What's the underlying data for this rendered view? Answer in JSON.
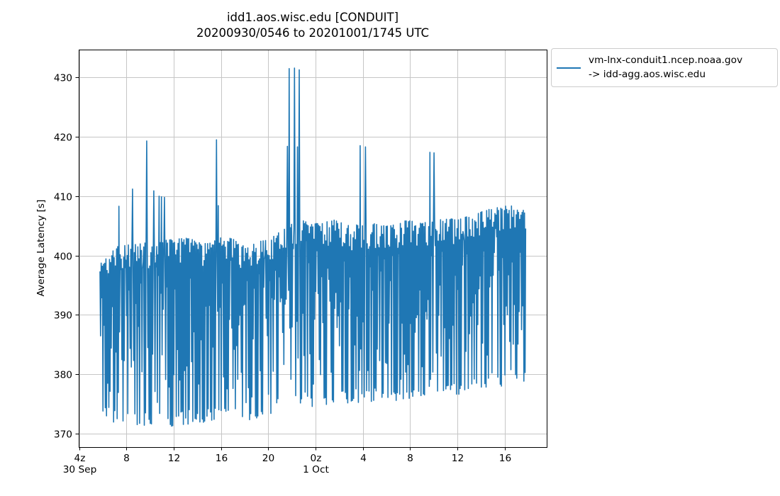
{
  "chart_data": {
    "type": "line",
    "title_lines": [
      "idd1.aos.wisc.edu [CONDUIT]",
      "20200930/0546 to 20201001/1745 UTC"
    ],
    "ylabel": "Average Latency [s]",
    "grid": {
      "show": true,
      "color": "#c6c6c6"
    },
    "axes_color": "#000000",
    "x_axis": {
      "unit": "hours since 2020-09-30 00:00 UTC",
      "range": [
        3.97,
        43.55
      ],
      "ticks": [
        {
          "t": 4,
          "label": "4z",
          "sub": "30 Sep"
        },
        {
          "t": 8,
          "label": "8"
        },
        {
          "t": 12,
          "label": "12"
        },
        {
          "t": 16,
          "label": "16"
        },
        {
          "t": 20,
          "label": "20"
        },
        {
          "t": 24,
          "label": "0z",
          "sub": "1 Oct"
        },
        {
          "t": 28,
          "label": "4"
        },
        {
          "t": 32,
          "label": "8"
        },
        {
          "t": 36,
          "label": "12"
        },
        {
          "t": 40,
          "label": "16"
        }
      ]
    },
    "y_axis": {
      "range": [
        367.7,
        434.7
      ],
      "ticks": [
        370,
        380,
        390,
        400,
        410,
        420,
        430
      ]
    },
    "series": [
      {
        "name": "vm-lnx-conduit1.ncep.noaa.gov -> idd-agg.aos.wisc.edu",
        "label_lines": [
          "vm-lnx-conduit1.ncep.noaa.gov",
          "-> idd-agg.aos.wisc.edu"
        ],
        "color": "#1f77b4",
        "time_start": "2020-09-30 05:46 UTC",
        "time_end": "2020-10-01 17:45 UTC",
        "synthesis": {
          "t_start": 5.77,
          "t_end": 41.75,
          "step_minutes": 3,
          "seed": 11,
          "envelope_keyframes": [
            [
              5.77,
              373.5,
              398.5
            ],
            [
              7.0,
              371.5,
              401.5
            ],
            [
              9.0,
              371.2,
              402.0
            ],
            [
              11.0,
              371.0,
              402.5
            ],
            [
              13.0,
              371.5,
              403.0
            ],
            [
              15.0,
              372.0,
              402.0
            ],
            [
              16.5,
              372.3,
              403.5
            ],
            [
              18.0,
              372.0,
              401.5
            ],
            [
              19.5,
              372.5,
              402.5
            ],
            [
              21.0,
              373.5,
              404.0
            ],
            [
              22.5,
              374.5,
              406.0
            ],
            [
              24.0,
              374.5,
              405.5
            ],
            [
              25.5,
              374.8,
              406.0
            ],
            [
              27.0,
              375.0,
              405.0
            ],
            [
              28.5,
              375.2,
              405.5
            ],
            [
              30.0,
              375.5,
              405.0
            ],
            [
              31.5,
              375.5,
              406.0
            ],
            [
              33.0,
              375.8,
              405.5
            ],
            [
              34.5,
              376.0,
              406.5
            ],
            [
              36.0,
              376.5,
              406.0
            ],
            [
              37.5,
              377.0,
              407.0
            ],
            [
              39.0,
              377.2,
              408.0
            ],
            [
              40.5,
              377.5,
              408.5
            ],
            [
              41.75,
              378.0,
              407.5
            ]
          ],
          "spikes": [
            [
              7.39,
              408.3
            ],
            [
              8.53,
              411.2
            ],
            [
              9.73,
              419.3
            ],
            [
              10.33,
              410.9
            ],
            [
              10.75,
              410.0
            ],
            [
              10.99,
              409.9
            ],
            [
              11.23,
              409.8
            ],
            [
              15.6,
              419.5
            ],
            [
              15.78,
              408.4
            ],
            [
              21.6,
              418.4
            ],
            [
              21.78,
              431.5
            ],
            [
              22.2,
              431.6
            ],
            [
              22.45,
              418.3
            ],
            [
              22.62,
              431.3
            ],
            [
              27.78,
              418.5
            ],
            [
              28.2,
              418.3
            ],
            [
              33.65,
              417.4
            ],
            [
              34.01,
              417.3
            ]
          ]
        }
      }
    ]
  }
}
